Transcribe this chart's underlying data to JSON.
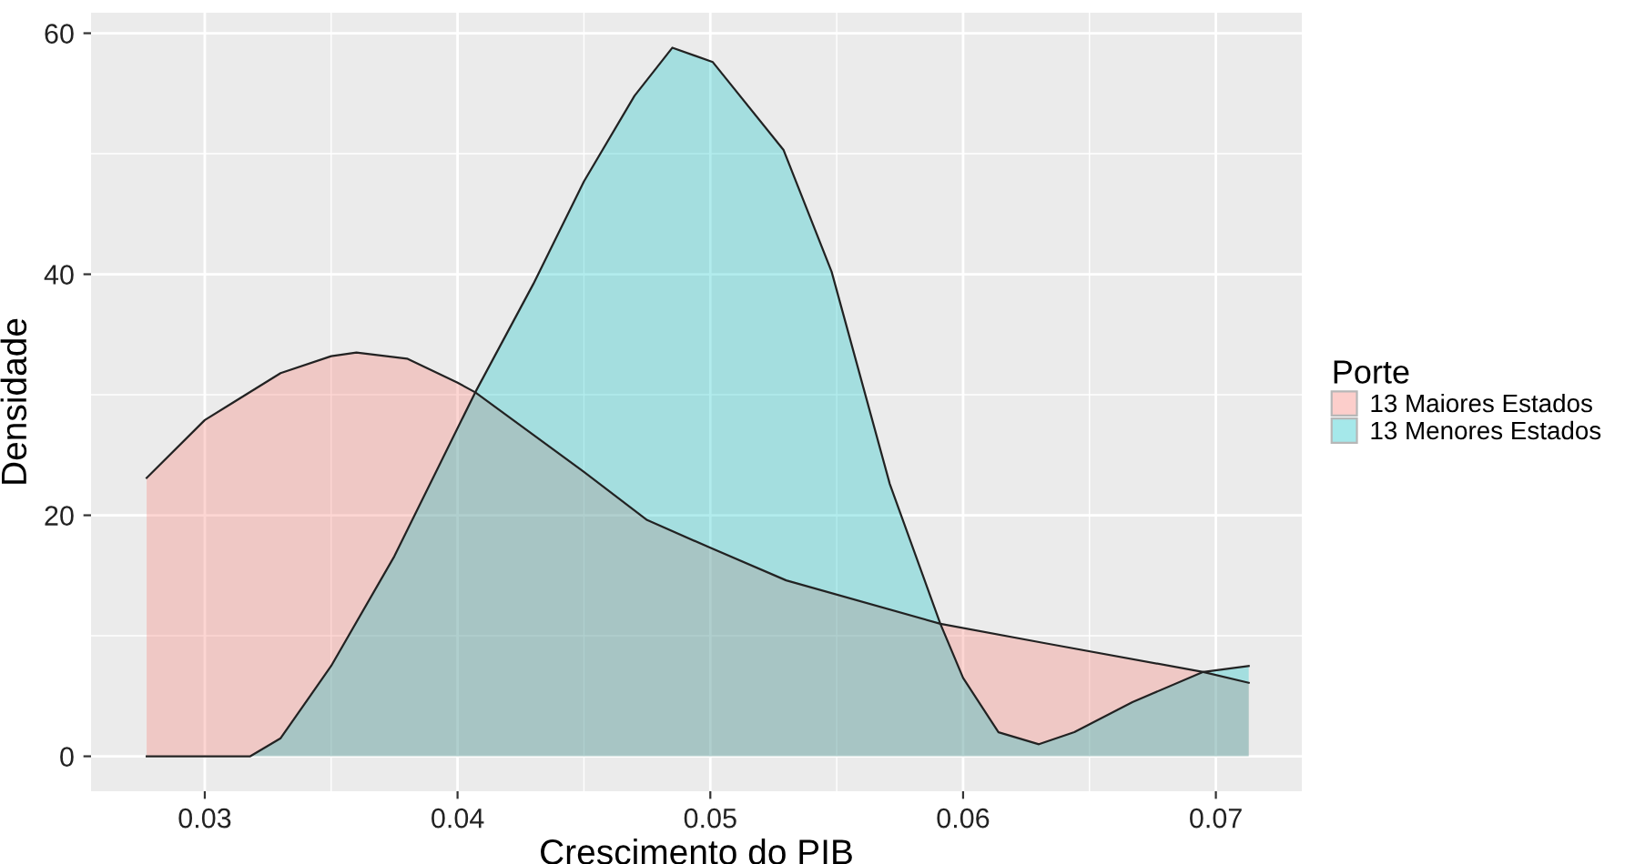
{
  "chart_data": {
    "type": "area",
    "xlabel": "Crescimento do PIB",
    "ylabel": "Densidade",
    "legend_title": "Porte",
    "legend": "right",
    "grid": true,
    "xlim": [
      0.0255,
      0.0734
    ],
    "ylim": [
      -2.9,
      61.7
    ],
    "xticks": [
      0.03,
      0.04,
      0.05,
      0.06,
      0.07
    ],
    "yticks": [
      0,
      20,
      40,
      60
    ],
    "series": [
      {
        "name": "13 Maiores Estados",
        "color": "#f8766d",
        "x": [
          0.0277,
          0.03,
          0.033,
          0.035,
          0.036,
          0.038,
          0.04,
          0.0407,
          0.045,
          0.0475,
          0.05,
          0.053,
          0.0591,
          0.0632,
          0.0695,
          0.0713
        ],
        "values": [
          23.1,
          27.9,
          31.8,
          33.2,
          33.5,
          33.0,
          31.0,
          30.2,
          23.6,
          19.6,
          17.3,
          14.6,
          11.0,
          9.4,
          7.0,
          6.1
        ]
      },
      {
        "name": "13 Menores Estados",
        "color": "#00bfc4",
        "x": [
          0.0277,
          0.0318,
          0.033,
          0.035,
          0.0375,
          0.0407,
          0.043,
          0.045,
          0.047,
          0.0485,
          0.0501,
          0.0529,
          0.0548,
          0.0571,
          0.0591,
          0.06,
          0.0614,
          0.063,
          0.0644,
          0.0667,
          0.0695,
          0.0713
        ],
        "values": [
          0,
          0,
          1.5,
          7.5,
          16.6,
          30.2,
          39.2,
          47.7,
          54.8,
          58.8,
          57.6,
          50.3,
          40.2,
          22.6,
          11.0,
          6.5,
          2.0,
          1.0,
          2.0,
          4.5,
          7.0,
          7.5
        ]
      }
    ]
  }
}
